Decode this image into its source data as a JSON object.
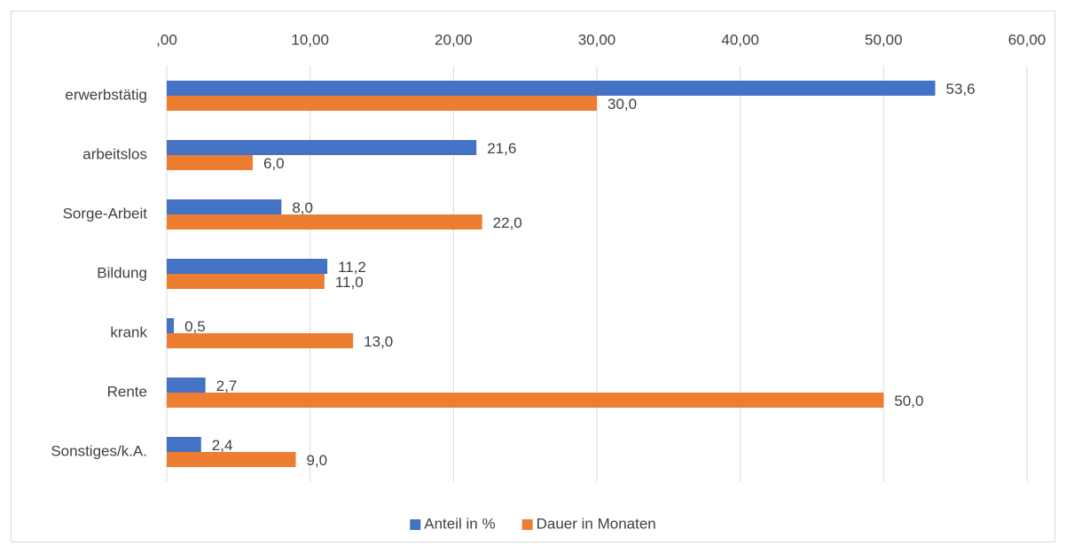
{
  "chart_data": {
    "type": "bar",
    "categories": [
      "erwerbstätig",
      "arbeitslos",
      "Sorge-Arbeit",
      "Bildung",
      "krank",
      "Rente",
      "Sonstiges/k.A."
    ],
    "series": [
      {
        "name": "Anteil in %",
        "color": "#4472c4",
        "values": [
          53.6,
          21.6,
          8.0,
          11.2,
          0.5,
          2.7,
          2.4
        ],
        "value_labels": [
          "53,6",
          "21,6",
          "8,0",
          "11,2",
          "0,5",
          "2,7",
          "2,4"
        ]
      },
      {
        "name": "Dauer in Monaten",
        "color": "#ed7d31",
        "values": [
          30.0,
          6.0,
          22.0,
          11.0,
          13.0,
          50.0,
          9.0
        ],
        "value_labels": [
          "30,0",
          "6,0",
          "22,0",
          "11,0",
          "13,0",
          "50,0",
          "9,0"
        ]
      }
    ],
    "xlim": [
      0,
      60
    ],
    "xticks": [
      {
        "value": 0,
        "label": ",00"
      },
      {
        "value": 10,
        "label": "10,00"
      },
      {
        "value": 20,
        "label": "20,00"
      },
      {
        "value": 30,
        "label": "30,00"
      },
      {
        "value": 40,
        "label": "40,00"
      },
      {
        "value": 50,
        "label": "50,00"
      },
      {
        "value": 60,
        "label": "60,00"
      }
    ],
    "grid": true,
    "legend": "bottom"
  }
}
